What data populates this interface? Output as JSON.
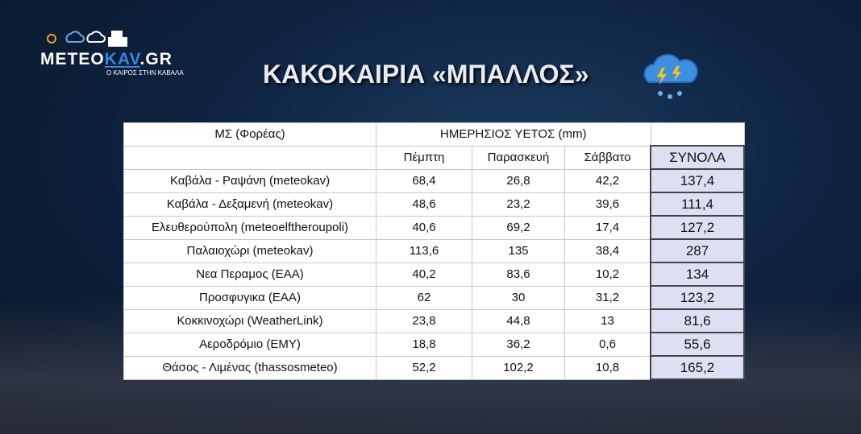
{
  "header": {
    "logo": {
      "part1": "METEO",
      "part2": "KAV",
      "part3": ".GR",
      "tagline": "Ο ΚΑΙΡΟΣ ΣΤΗΝ ΚΑΒΑΛΑ"
    },
    "title": "ΚΑΚΟΚΑΙΡΙΑ «ΜΠΑΛΛΟΣ»"
  },
  "table": {
    "group_header": [
      "ΜΣ (Φορέας)",
      "ΗΜΕΡΗΣΙΟΣ ΥΕΤΟΣ (mm)"
    ],
    "columns": [
      "Πέμπτη",
      "Παρασκευή",
      "Σάββατο",
      "ΣΥΝΟΛΑ"
    ],
    "rows": [
      [
        "Καβάλα - Ραψάνη (meteokav)",
        "68,4",
        "26,8",
        "42,2",
        "137,4"
      ],
      [
        "Καβάλα - Δεξαμενή (meteokav)",
        "48,6",
        "23,2",
        "39,6",
        "111,4"
      ],
      [
        "Ελευθερούπολη (meteoelftheroupoli)",
        "40,6",
        "69,2",
        "17,4",
        "127,2"
      ],
      [
        "Παλαιοχώρι (meteokav)",
        "113,6",
        "135",
        "38,4",
        "287"
      ],
      [
        "Νεα Περαμος (ΕΑΑ)",
        "40,2",
        "83,6",
        "10,2",
        "134"
      ],
      [
        "Προσφυγικα (ΕΑΑ)",
        "62",
        "30",
        "31,2",
        "123,2"
      ],
      [
        "Κοκκινοχώρι (WeatherLink)",
        "23,8",
        "44,8",
        "13",
        "81,6"
      ],
      [
        "Αεροδρόμιο (ΕΜΥ)",
        "18,8",
        "36,2",
        "0,6",
        "55,6"
      ],
      [
        "Θάσος - Λιμένας (thassosmeteo)",
        "52,2",
        "102,2",
        "10,8",
        "165,2"
      ]
    ]
  }
}
